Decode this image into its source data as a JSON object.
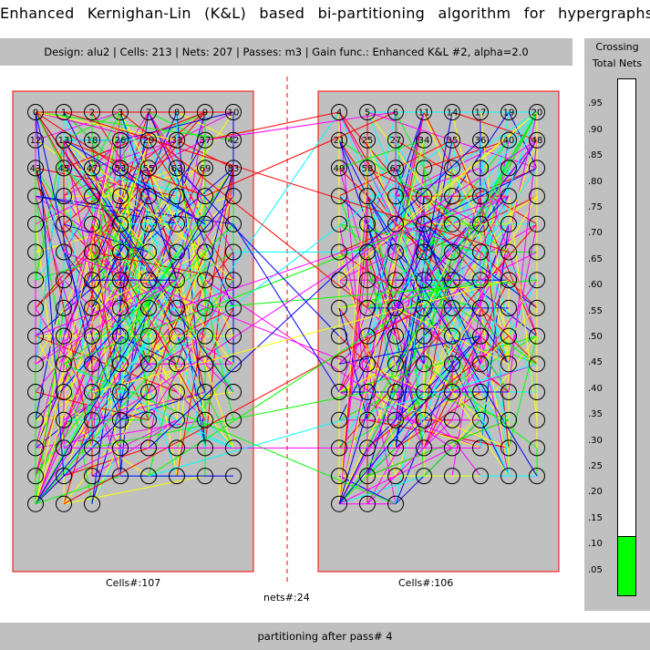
{
  "window": {
    "title": "Enhanced Kernighan-Lin (K&L) based bi-partitioning algorithm for hypergraphs"
  },
  "info": {
    "summary": "Design: alu2  |  Cells: 213  |  Nets: 207  |  Passes: m3  |  Gain func.: Enhanced K&L #2, alpha=2.0"
  },
  "legend": {
    "title": "Crossing",
    "subtitle": "Total Nets",
    "fill_fraction": 0.115,
    "fill_color": "#00ff00",
    "ticks": [
      ".95",
      ".90",
      ".85",
      ".80",
      ".75",
      ".70",
      ".65",
      ".60",
      ".55",
      ".50",
      ".45",
      ".40",
      ".35",
      ".30",
      ".25",
      ".20",
      ".15",
      ".10",
      ".05"
    ]
  },
  "partitions": {
    "left_count_label": "Cells#:107",
    "right_count_label": "Cells#:106",
    "cut_label": "nets#:24",
    "left_visible_ids": [
      "0",
      "1",
      "2",
      "3",
      "7",
      "8",
      "9",
      "10",
      "12",
      "13",
      "18",
      "26",
      "29",
      "33",
      "37",
      "42",
      "43",
      "45",
      "47",
      "53",
      "55",
      "63",
      "69",
      "83"
    ],
    "right_visible_ids": [
      "4",
      "5",
      "6",
      "11",
      "14",
      "17",
      "19",
      "20",
      "21",
      "25",
      "27",
      "34",
      "35",
      "36",
      "40",
      "48",
      "49",
      "58",
      "62"
    ]
  },
  "net_colors": [
    "#ff0000",
    "#00ff00",
    "#0000ff",
    "#ffff00",
    "#ff00ff",
    "#00ffff"
  ],
  "status": {
    "text": "partitioning after pass# 4"
  }
}
